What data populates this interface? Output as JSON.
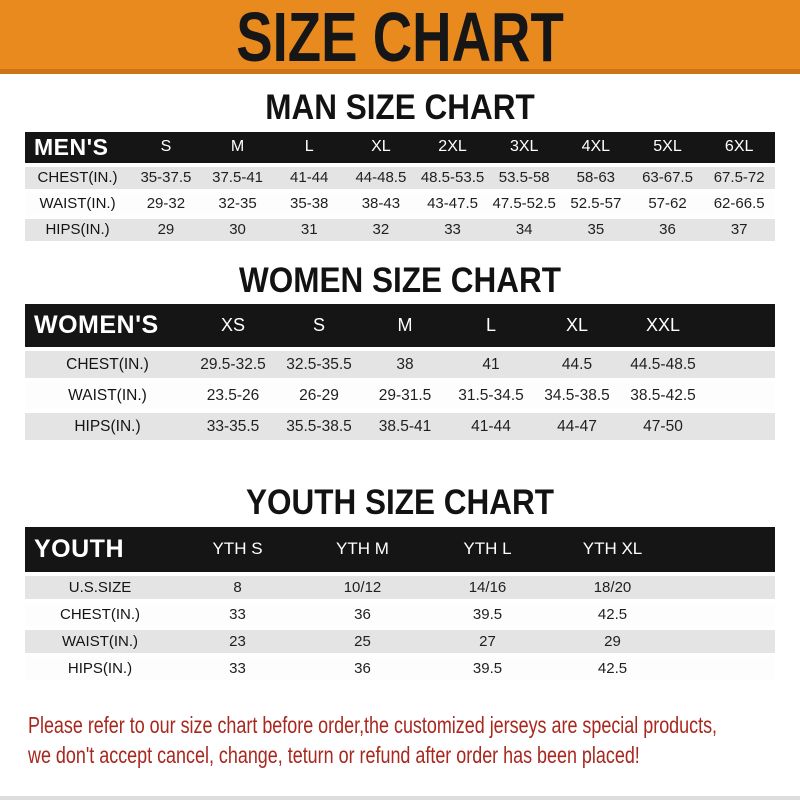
{
  "banner": {
    "title": "SIZE CHART"
  },
  "colors": {
    "banner_bg": "#E98A1F",
    "banner_edge": "#CE7317",
    "header_bar": "#151515",
    "row_alt_gray": "#E4E4E4",
    "footer_red": "#A8271E"
  },
  "chart_data": [
    {
      "type": "table",
      "title": "MAN SIZE CHART",
      "corner_label": "MEN'S",
      "columns": [
        "S",
        "M",
        "L",
        "XL",
        "2XL",
        "3XL",
        "4XL",
        "5XL",
        "6XL"
      ],
      "rows": [
        {
          "label": "CHEST(IN.)",
          "values": [
            "35-37.5",
            "37.5-41",
            "41-44",
            "44-48.5",
            "48.5-53.5",
            "53.5-58",
            "58-63",
            "63-67.5",
            "67.5-72"
          ]
        },
        {
          "label": "WAIST(IN.)",
          "values": [
            "29-32",
            "32-35",
            "35-38",
            "38-43",
            "43-47.5",
            "47.5-52.5",
            "52.5-57",
            "57-62",
            "62-66.5"
          ]
        },
        {
          "label": "HIPS(IN.)",
          "values": [
            "29",
            "30",
            "31",
            "32",
            "33",
            "34",
            "35",
            "36",
            "37"
          ]
        }
      ]
    },
    {
      "type": "table",
      "title": "WOMEN SIZE CHART",
      "corner_label": "WOMEN'S",
      "columns": [
        "XS",
        "S",
        "M",
        "L",
        "XL",
        "XXL"
      ],
      "rows": [
        {
          "label": "CHEST(IN.)",
          "values": [
            "29.5-32.5",
            "32.5-35.5",
            "38",
            "41",
            "44.5",
            "44.5-48.5"
          ]
        },
        {
          "label": "WAIST(IN.)",
          "values": [
            "23.5-26",
            "26-29",
            "29-31.5",
            "31.5-34.5",
            "34.5-38.5",
            "38.5-42.5"
          ]
        },
        {
          "label": "HIPS(IN.)",
          "values": [
            "33-35.5",
            "35.5-38.5",
            "38.5-41",
            "41-44",
            "44-47",
            "47-50"
          ]
        }
      ]
    },
    {
      "type": "table",
      "title": "YOUTH SIZE CHART",
      "corner_label": "YOUTH",
      "columns": [
        "YTH S",
        "YTH M",
        "YTH L",
        "YTH XL"
      ],
      "rows": [
        {
          "label": "U.S.SIZE",
          "values": [
            "8",
            "10/12",
            "14/16",
            "18/20"
          ]
        },
        {
          "label": "CHEST(IN.)",
          "values": [
            "33",
            "36",
            "39.5",
            "42.5"
          ]
        },
        {
          "label": "WAIST(IN.)",
          "values": [
            "23",
            "25",
            "27",
            "29"
          ]
        },
        {
          "label": "HIPS(IN.)",
          "values": [
            "33",
            "36",
            "39.5",
            "42.5"
          ]
        }
      ]
    }
  ],
  "footer": {
    "lines": [
      "Please refer to our size chart before order,the customized jerseys are special products,",
      "we don't accept cancel, change, teturn or refund after order has been placed!"
    ]
  }
}
